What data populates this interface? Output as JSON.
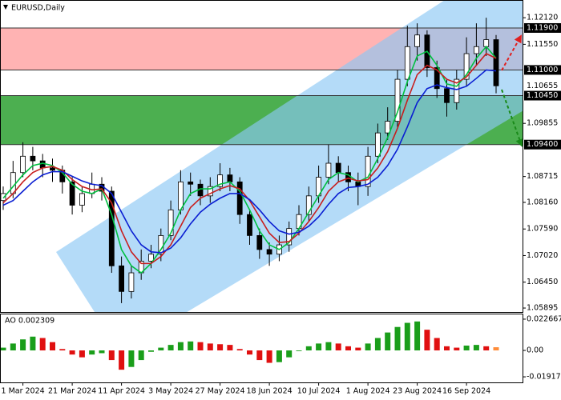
{
  "chart_data": [
    {
      "type": "candlestick",
      "title": "EURUSD,Daily",
      "categories": [
        null,
        null,
        "1 Mar 2024",
        null,
        null,
        null,
        null,
        "21 Mar 2024",
        null,
        null,
        null,
        null,
        "11 Apr 2024",
        null,
        null,
        null,
        null,
        "3 May 2024",
        null,
        null,
        null,
        null,
        "27 May 2024",
        null,
        null,
        null,
        null,
        "18 Jun 2024",
        null,
        null,
        null,
        null,
        "10 Jul 2024",
        null,
        null,
        null,
        null,
        "1 Aug 2024",
        null,
        null,
        null,
        null,
        "23 Aug 2024",
        null,
        null,
        null,
        null,
        "16 Sep 2024",
        null,
        null,
        null
      ],
      "open": [
        1.082,
        1.0835,
        1.088,
        1.0915,
        1.0905,
        1.089,
        1.0885,
        1.086,
        1.081,
        1.0835,
        1.0855,
        1.084,
        1.068,
        1.0625,
        1.0665,
        1.069,
        1.0705,
        1.0745,
        1.08,
        1.086,
        1.0855,
        1.083,
        1.085,
        1.0875,
        1.086,
        1.079,
        1.0745,
        1.0715,
        1.0705,
        1.0725,
        1.076,
        1.079,
        1.083,
        1.087,
        1.09,
        1.088,
        1.086,
        1.085,
        1.0915,
        1.0965,
        1.099,
        1.108,
        1.115,
        1.1175,
        1.1105,
        1.106,
        1.103,
        1.108,
        1.1135,
        1.115,
        1.1165
      ],
      "high": [
        1.085,
        1.0905,
        1.0945,
        1.0935,
        1.092,
        1.091,
        1.0895,
        1.087,
        1.085,
        1.088,
        1.087,
        1.085,
        1.07,
        1.068,
        1.0715,
        1.0725,
        1.076,
        1.082,
        1.0885,
        1.088,
        1.0865,
        1.087,
        1.09,
        1.089,
        1.087,
        1.08,
        1.076,
        1.073,
        1.0745,
        1.0775,
        1.081,
        1.085,
        1.0895,
        1.094,
        1.0915,
        1.0895,
        1.088,
        1.0935,
        1.0985,
        1.102,
        1.11,
        1.1195,
        1.12,
        1.1185,
        1.112,
        1.108,
        1.11,
        1.117,
        1.12,
        1.1212,
        1.1175
      ],
      "low": [
        1.08,
        1.0825,
        1.087,
        1.0885,
        1.087,
        1.086,
        1.0835,
        1.079,
        1.0795,
        1.0825,
        1.082,
        1.0665,
        1.06,
        1.061,
        1.065,
        1.0675,
        1.069,
        1.0735,
        1.079,
        1.083,
        1.081,
        1.0815,
        1.084,
        1.084,
        1.077,
        1.0725,
        1.0695,
        1.068,
        1.069,
        1.071,
        1.0745,
        1.0775,
        1.0815,
        1.0855,
        1.086,
        1.084,
        1.081,
        1.083,
        1.09,
        1.095,
        1.0975,
        1.1065,
        1.112,
        1.1085,
        1.104,
        1.1,
        1.1015,
        1.1065,
        1.111,
        1.113,
        1.105
      ],
      "close": [
        1.0835,
        1.088,
        1.0915,
        1.0905,
        1.089,
        1.0885,
        1.086,
        1.081,
        1.0835,
        1.0855,
        1.084,
        1.068,
        1.0625,
        1.0665,
        1.069,
        1.0705,
        1.0745,
        1.08,
        1.086,
        1.0855,
        1.083,
        1.085,
        1.0875,
        1.086,
        1.079,
        1.0745,
        1.0715,
        1.0705,
        1.0725,
        1.076,
        1.079,
        1.083,
        1.087,
        1.09,
        1.088,
        1.086,
        1.085,
        1.0915,
        1.0965,
        1.099,
        1.108,
        1.115,
        1.1175,
        1.1105,
        1.106,
        1.103,
        1.108,
        1.1135,
        1.115,
        1.1165,
        1.1066
      ],
      "series": [
        {
          "color": "#00c040",
          "values": [
            1.0825,
            1.085,
            1.0875,
            1.0895,
            1.09,
            1.0895,
            1.088,
            1.0855,
            1.084,
            1.0835,
            1.0845,
            1.079,
            1.0715,
            1.068,
            1.0665,
            1.0685,
            1.0715,
            1.075,
            1.08,
            1.0835,
            1.0845,
            1.0845,
            1.0855,
            1.086,
            1.084,
            1.08,
            1.0755,
            1.0725,
            1.0715,
            1.073,
            1.076,
            1.0795,
            1.083,
            1.0865,
            1.088,
            1.0875,
            1.086,
            1.087,
            1.091,
            1.0955,
            1.101,
            1.1075,
            1.113,
            1.114,
            1.111,
            1.107,
            1.1065,
            1.109,
            1.1125,
            1.115,
            1.1125
          ]
        },
        {
          "color": "#c81e1e",
          "values": [
            1.0815,
            1.0835,
            1.086,
            1.088,
            1.089,
            1.0893,
            1.0885,
            1.0865,
            1.085,
            1.0843,
            1.0845,
            1.0815,
            1.0755,
            1.071,
            1.0685,
            1.0685,
            1.07,
            1.0725,
            1.0765,
            1.0805,
            1.0825,
            1.0835,
            1.0845,
            1.0852,
            1.0845,
            1.082,
            1.0785,
            1.075,
            1.073,
            1.0732,
            1.075,
            1.0775,
            1.0805,
            1.084,
            1.086,
            1.0868,
            1.0862,
            1.0865,
            1.089,
            1.0925,
            1.0975,
            1.1035,
            1.109,
            1.111,
            1.11,
            1.108,
            1.1072,
            1.1085,
            1.111,
            1.1135,
            1.1125
          ]
        },
        {
          "color": "#0a1ed2",
          "values": [
            1.081,
            1.082,
            1.084,
            1.086,
            1.0875,
            1.0882,
            1.0882,
            1.0872,
            1.0862,
            1.0855,
            1.0852,
            1.0835,
            1.0795,
            1.0755,
            1.0725,
            1.071,
            1.0708,
            1.0718,
            1.074,
            1.077,
            1.0795,
            1.0812,
            1.0825,
            1.0835,
            1.0835,
            1.0822,
            1.08,
            1.0775,
            1.0755,
            1.0748,
            1.0752,
            1.0765,
            1.0785,
            1.0812,
            1.0835,
            1.0848,
            1.085,
            1.0855,
            1.087,
            1.0895,
            1.093,
            1.0978,
            1.103,
            1.106,
            1.1068,
            1.1062,
            1.1058,
            1.1065,
            1.1082,
            1.11,
            1.1098
          ]
        }
      ],
      "ylim": [
        1.0581,
        1.125
      ],
      "yticks": [
        {
          "value": 1.1212,
          "label": "1.12120"
        },
        {
          "value": 1.1155,
          "label": "1.11550"
        },
        {
          "value": 1.09855,
          "label": "1.09855"
        },
        {
          "value": 1.08715,
          "label": "1.08715"
        },
        {
          "value": 1.0816,
          "label": "1.08160"
        },
        {
          "value": 1.0759,
          "label": "1.07590"
        },
        {
          "value": 1.0702,
          "label": "1.07020"
        },
        {
          "value": 1.0645,
          "label": "1.06450"
        },
        {
          "value": 1.05895,
          "label": "1.05895"
        }
      ],
      "zones": [
        {
          "color": "#ffb3b3",
          "from": {
            "value": 1.119,
            "label": "1.11900"
          },
          "to": {
            "value": 1.11,
            "label": "1.11000"
          }
        },
        {
          "color": "#4caf50",
          "from": {
            "value": 1.1045,
            "label": "1.10450"
          },
          "to": {
            "value": 1.094,
            "label": "1.09400"
          }
        }
      ],
      "current_price": {
        "value": 1.10655,
        "label": "1.10655"
      }
    },
    {
      "type": "bar",
      "title": "AO 0.002309",
      "values": [
        0.002,
        0.005,
        0.008,
        0.01,
        0.009,
        0.006,
        0.001,
        -0.003,
        -0.005,
        -0.003,
        -0.002,
        -0.007,
        -0.014,
        -0.012,
        -0.007,
        -0.001,
        0.002,
        0.004,
        0.006,
        0.0065,
        0.006,
        0.005,
        0.0045,
        0.004,
        0.001,
        -0.003,
        -0.007,
        -0.009,
        -0.0085,
        -0.005,
        -0.0005,
        0.003,
        0.005,
        0.006,
        0.005,
        0.003,
        0.002,
        0.005,
        0.009,
        0.013,
        0.017,
        0.02,
        0.021,
        0.015,
        0.009,
        0.003,
        0.002,
        0.0035,
        0.004,
        0.003,
        0.002309
      ],
      "up_color": "#1a9e1a",
      "down_color": "#e01010",
      "last_color": "#ff8c3a",
      "ylim": [
        -0.0232,
        0.0267
      ],
      "yticks": [
        {
          "value": 0.022667,
          "label": "0.022667"
        },
        {
          "value": 0,
          "label": "0.00"
        },
        {
          "value": -0.019172,
          "label": "-0.019172"
        }
      ]
    }
  ]
}
